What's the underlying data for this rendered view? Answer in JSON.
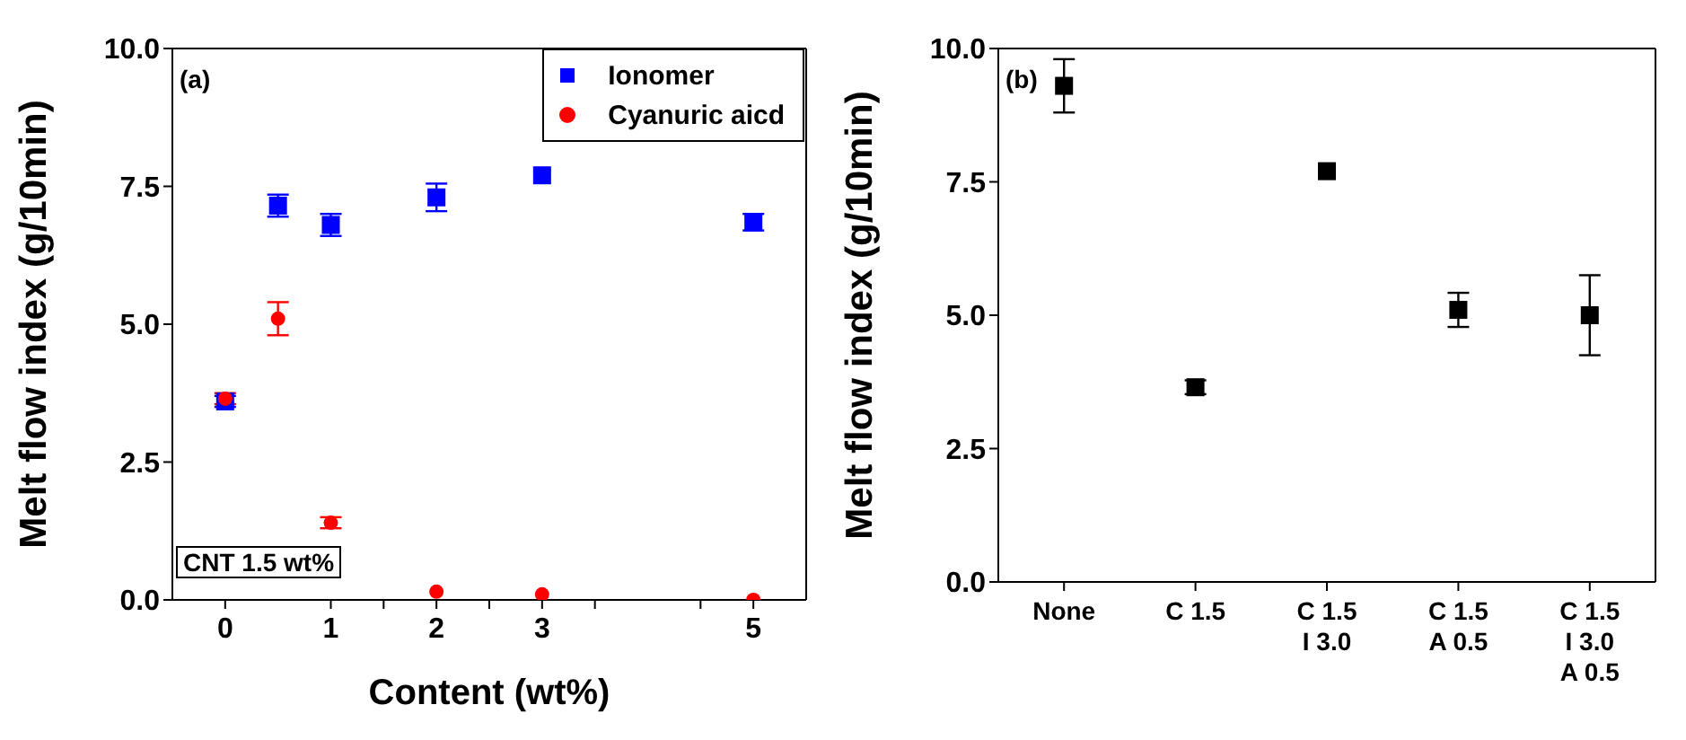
{
  "chart_data": [
    {
      "type": "scatter",
      "xlabel": "Content (wt%)",
      "ylabel": "Melt flow index (g/10min)",
      "x": [
        0,
        0.5,
        1,
        2,
        3,
        5
      ],
      "series": [
        {
          "name": "Ionomer",
          "color": "#0000ff",
          "marker": "square",
          "values": [
            3.6,
            7.15,
            6.8,
            7.3,
            7.7,
            6.85
          ],
          "errors": [
            0.1,
            0.2,
            0.2,
            0.25,
            null,
            0.15
          ]
        },
        {
          "name": "Cyanuric aicd",
          "color": "#ff0000",
          "marker": "circle",
          "values": [
            3.65,
            5.1,
            1.4,
            0.15,
            0.1,
            0.0
          ],
          "errors": [
            0.1,
            0.3,
            0.1,
            null,
            null,
            null
          ]
        }
      ],
      "xlim": [
        -0.5,
        5.5
      ],
      "xticks": [
        0,
        1,
        {
          "value": 1.5,
          "label": null
        },
        2,
        {
          "value": 2.5,
          "label": null
        },
        3,
        {
          "value": 3.5,
          "label": null
        },
        {
          "value": 4.5,
          "label": null
        },
        5
      ],
      "ylim": [
        0,
        10
      ],
      "yticks": [
        {
          "value": 0,
          "label": "0.0"
        },
        {
          "value": 2.5,
          "label": "2.5"
        },
        {
          "value": 5,
          "label": "5.0"
        },
        {
          "value": 7.5,
          "label": "7.5"
        },
        {
          "value": 10,
          "label": "10.0"
        }
      ],
      "legend": "top right",
      "annotations": [
        "(a)",
        "CNT 1.5 wt%"
      ]
    },
    {
      "type": "scatter",
      "ylabel": "Melt flow index (g/10min)",
      "categories": [
        "None",
        "C 1.5",
        "C 1.5\nI 3.0",
        "C 1.5\nA 0.5",
        "C 1.5\nI 3.0\nA 0.5"
      ],
      "series": [
        {
          "color": "#000000",
          "marker": "square",
          "values": [
            9.3,
            3.65,
            7.7,
            5.1,
            5.0
          ],
          "errors": [
            0.5,
            0.13,
            null,
            0.32,
            0.75
          ]
        }
      ],
      "ylim": [
        0,
        10
      ],
      "yticks": [
        {
          "value": 0,
          "label": "0.0"
        },
        {
          "value": 2.5,
          "label": "2.5"
        },
        {
          "value": 5,
          "label": "5.0"
        },
        {
          "value": 7.5,
          "label": "7.5"
        },
        {
          "value": 10,
          "label": "10.0"
        }
      ],
      "annotations": [
        "(b)"
      ]
    }
  ]
}
